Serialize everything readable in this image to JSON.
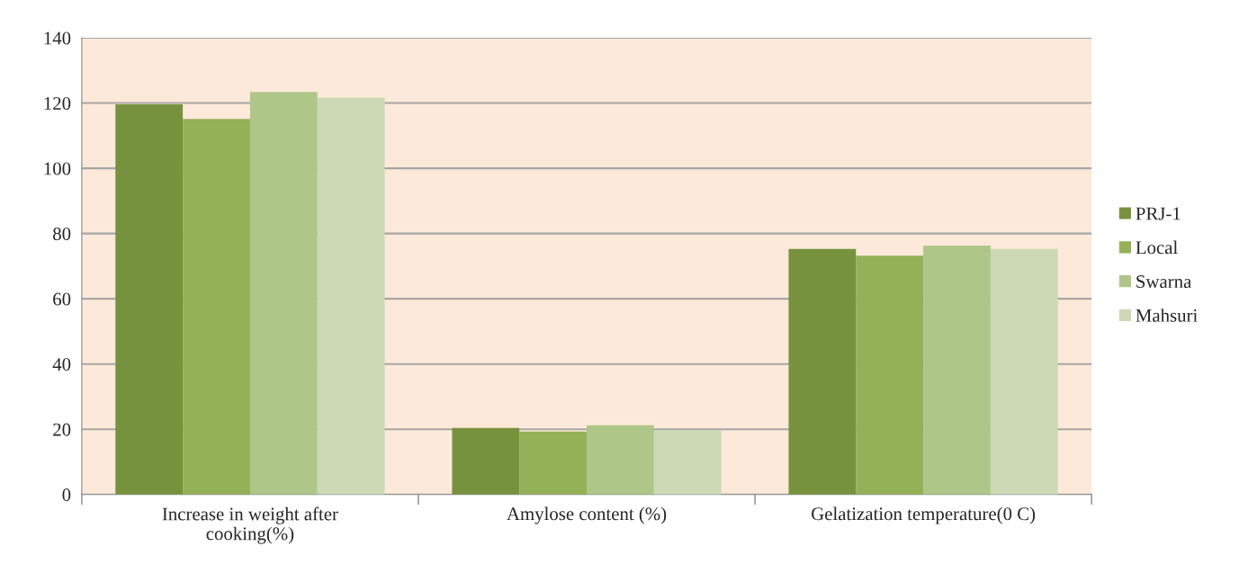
{
  "chart_data": {
    "type": "bar",
    "categories": [
      "Increase in weight after\ncooking(%)",
      "Amylose content (%)",
      "Gelatization temperature(0 C)"
    ],
    "series": [
      {
        "name": "PRJ-1",
        "color": "#77923c",
        "values": [
          119.6,
          20.4,
          75.3
        ]
      },
      {
        "name": "Local",
        "color": "#93b156",
        "values": [
          115.1,
          19.3,
          73.2
        ]
      },
      {
        "name": "Swarna",
        "color": "#aec788",
        "values": [
          123.4,
          21.2,
          76.3
        ]
      },
      {
        "name": "Mahsuri",
        "color": "#cdd9b5",
        "values": [
          121.7,
          19.8,
          75.3
        ]
      }
    ],
    "ylim": [
      0,
      140
    ],
    "yticks": [
      0,
      20,
      40,
      60,
      80,
      100,
      120,
      140
    ],
    "grid": "y",
    "legend": "right"
  }
}
